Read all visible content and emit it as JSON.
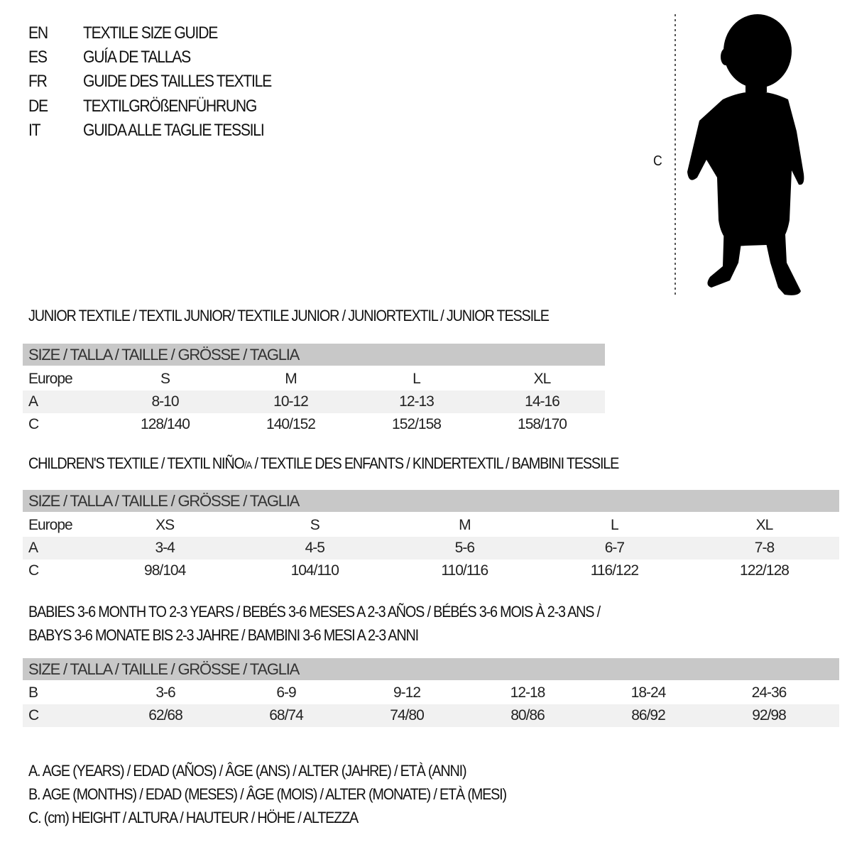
{
  "title_rows": [
    {
      "code": "EN",
      "title": "TEXTILE SIZE GUIDE"
    },
    {
      "code": "ES",
      "title": "GUÍA DE TALLAS"
    },
    {
      "code": "FR",
      "title": "GUIDE DES TAILLES TEXTILE"
    },
    {
      "code": "DE",
      "title": "TEXTILGRÖßENFÜHRUNG"
    },
    {
      "code": "IT",
      "title": "GUIDA ALLE TAGLIE TESSILI"
    }
  ],
  "figure": {
    "height_label": "C"
  },
  "junior": {
    "heading": "JUNIOR TEXTILE / TEXTIL JUNIOR/ TEXTILE JUNIOR / JUNIORTEXTIL / JUNIOR TESSILE",
    "header": "SIZE / TALLA / TAILLE / GRÖSSE / TAGLIA",
    "rows": [
      {
        "label": "Europe",
        "cells": [
          "S",
          "M",
          "L",
          "XL"
        ]
      },
      {
        "label": "A",
        "cells": [
          "8-10",
          "10-12",
          "12-13",
          "14-16"
        ]
      },
      {
        "label": "C",
        "cells": [
          "128/140",
          "140/152",
          "152/158",
          "158/170"
        ]
      }
    ]
  },
  "children": {
    "heading_pre": "CHILDREN'S TEXTILE / TEXTIL NIÑO",
    "heading_sub": "/A",
    "heading_post": " / TEXTILE DES ENFANTS / KINDERTEXTIL / BAMBINI TESSILE",
    "header": "SIZE / TALLA / TAILLE / GRÖSSE / TAGLIA",
    "rows": [
      {
        "label": "Europe",
        "cells": [
          "XS",
          "S",
          "M",
          "L",
          "XL"
        ]
      },
      {
        "label": "A",
        "cells": [
          "3-4",
          "4-5",
          "5-6",
          "6-7",
          "7-8"
        ]
      },
      {
        "label": "C",
        "cells": [
          "98/104",
          "104/110",
          "110/116",
          "116/122",
          "122/128"
        ]
      }
    ]
  },
  "babies": {
    "heading_line1": "BABIES 3-6 MONTH TO 2-3 YEARS / BEBÉS 3-6 MESES A 2-3 AÑOS / BÉBÉS 3-6 MOIS À 2-3 ANS /",
    "heading_line2": "BABYS 3-6 MONATE BIS 2-3 JAHRE / BAMBINI 3-6 MESI A 2-3 ANNI",
    "header": "SIZE / TALLA / TAILLE / GRÖSSE / TAGLIA",
    "rows": [
      {
        "label": "B",
        "cells": [
          "3-6",
          "6-9",
          "9-12",
          "12-18",
          "18-24",
          "24-36"
        ]
      },
      {
        "label": "C",
        "cells": [
          "62/68",
          "68/74",
          "74/80",
          "80/86",
          "86/92",
          "92/98"
        ]
      }
    ]
  },
  "legend": [
    "A. AGE (YEARS) / EDAD (AÑOS) / ÂGE (ANS) / ALTER (JAHRE) / ETÀ (ANNI)",
    "B. AGE (MONTHS) / EDAD (MESES) / ÂGE (MOIS) / ALTER (MONATE) / ETÀ (MESI)",
    "C. (cm) HEIGHT / ALTURA / HAUTEUR / HÖHE / ALTEZZA"
  ]
}
